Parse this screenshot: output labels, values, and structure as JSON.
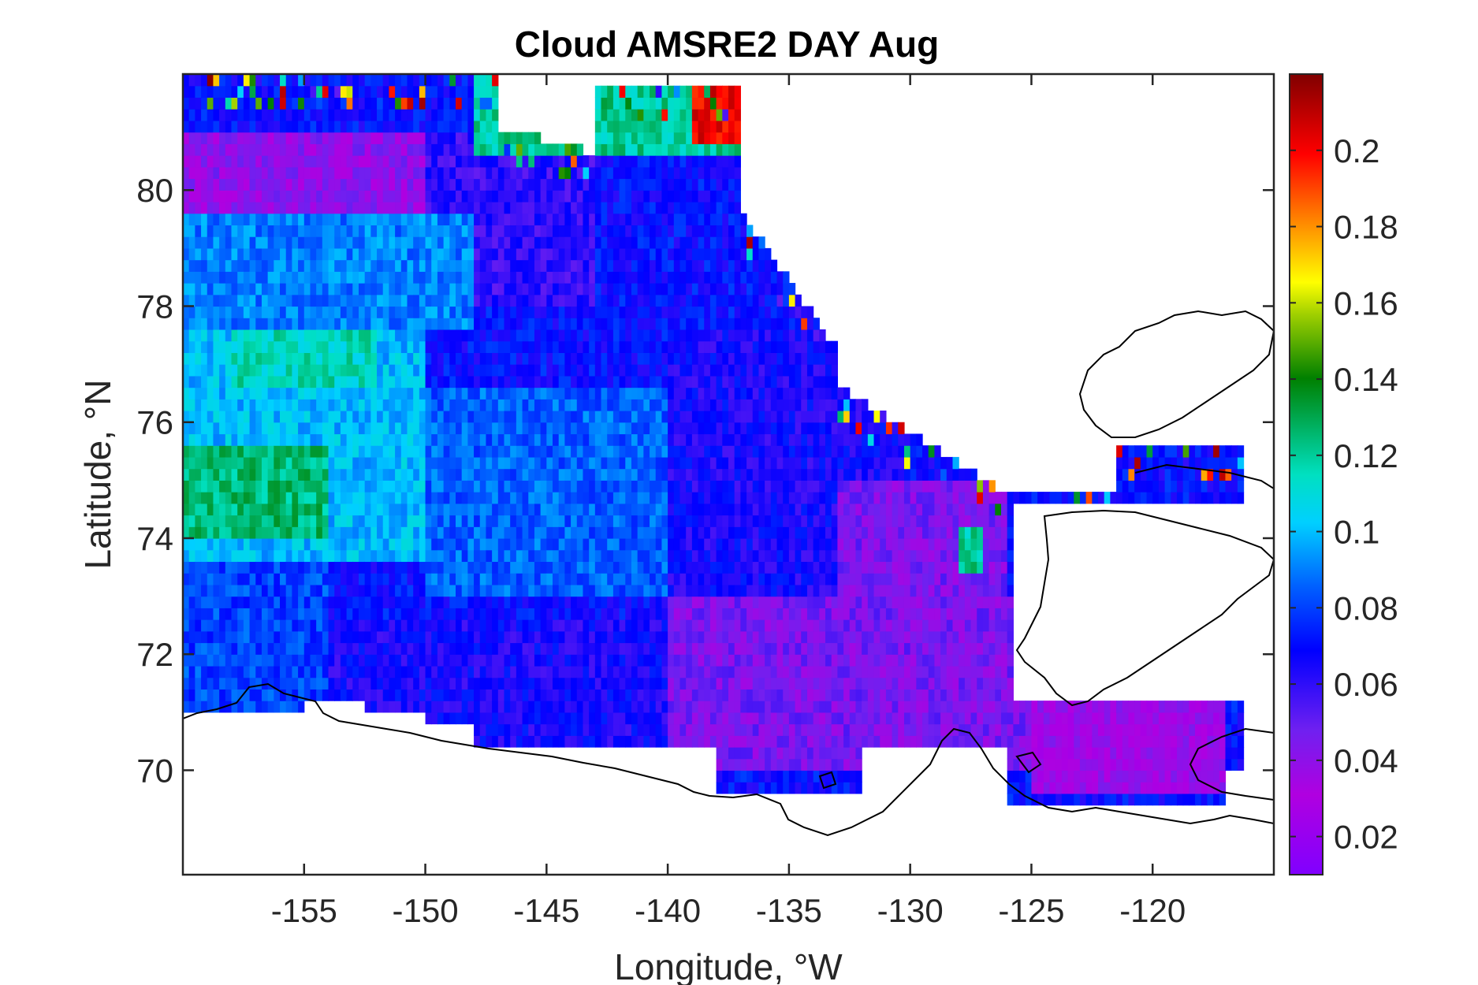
{
  "chart_data": {
    "type": "heatmap",
    "title": "Cloud AMSRE2 DAY Aug",
    "xlabel": "Longitude, °W",
    "ylabel": "Latitude, °N",
    "xlim": [
      -160,
      -115
    ],
    "ylim": [
      68.2,
      82
    ],
    "x_ticks": [
      -155,
      -150,
      -145,
      -140,
      -135,
      -130,
      -125,
      -120
    ],
    "x_tick_labels": [
      "-155",
      "-150",
      "-145",
      "-140",
      "-135",
      "-130",
      "-125",
      "-120"
    ],
    "y_ticks": [
      70,
      72,
      74,
      76,
      78,
      80
    ],
    "y_tick_labels": [
      "70",
      "72",
      "74",
      "76",
      "78",
      "80"
    ],
    "colorbar": {
      "range": [
        0.01,
        0.22
      ],
      "ticks": [
        0.02,
        0.04,
        0.06,
        0.08,
        0.1,
        0.12,
        0.14,
        0.16,
        0.18,
        0.2
      ],
      "tick_labels": [
        "0.02",
        "0.04",
        "0.06",
        "0.08",
        "0.1",
        "0.12",
        "0.14",
        "0.16",
        "0.18",
        "0.2"
      ],
      "colormap": [
        "#8000ff",
        "#c000d0",
        "#6020f0",
        "#0000ff",
        "#0080ff",
        "#00ffff",
        "#00c080",
        "#008000",
        "#80c000",
        "#ffff00",
        "#ff8000",
        "#ff0000",
        "#800000"
      ]
    },
    "cell_size_deg": {
      "lon": 0.25,
      "lat": 0.2
    },
    "regions": [
      {
        "lon": [
          -160,
          -154
        ],
        "lat": [
          71.0,
          73.5
        ],
        "value": 0.08
      },
      {
        "lon": [
          -154,
          -140
        ],
        "lat": [
          70.3,
          72.5
        ],
        "value": 0.065
      },
      {
        "lon": [
          -140,
          -125
        ],
        "lat": [
          70.0,
          73.0
        ],
        "value": 0.045
      },
      {
        "lon": [
          -125,
          -117
        ],
        "lat": [
          69.5,
          71.5
        ],
        "value": 0.035
      },
      {
        "lon": [
          -160,
          -150
        ],
        "lat": [
          73.5,
          77.5
        ],
        "value": 0.1
      },
      {
        "lon": [
          -160,
          -154
        ],
        "lat": [
          74.0,
          75.5
        ],
        "value": 0.125
      },
      {
        "lon": [
          -158,
          -152
        ],
        "lat": [
          76.5,
          77.8
        ],
        "value": 0.115
      },
      {
        "lon": [
          -150,
          -140
        ],
        "lat": [
          73.0,
          76.5
        ],
        "value": 0.085
      },
      {
        "lon": [
          -140,
          -130
        ],
        "lat": [
          73.0,
          77.5
        ],
        "value": 0.065
      },
      {
        "lon": [
          -133,
          -126
        ],
        "lat": [
          72.0,
          75.0
        ],
        "value": 0.045
      },
      {
        "lon": [
          -160,
          -150
        ],
        "lat": [
          79.5,
          81.0
        ],
        "value": 0.04
      },
      {
        "lon": [
          -150,
          -143
        ],
        "lat": [
          78.0,
          81.0
        ],
        "value": 0.06
      },
      {
        "lon": [
          -160,
          -148
        ],
        "lat": [
          77.5,
          79.5
        ],
        "value": 0.09
      },
      {
        "lon": [
          -148,
          -137
        ],
        "lat": [
          80.5,
          82.0
        ],
        "value": 0.12
      },
      {
        "lon": [
          -139,
          -137
        ],
        "lat": [
          80.8,
          81.8
        ],
        "value": 0.2
      },
      {
        "lon": [
          -128,
          -127
        ],
        "lat": [
          73.4,
          74.2
        ],
        "value": 0.12
      },
      {
        "lon": [
          -124,
          -115
        ],
        "lat": [
          74.6,
          75.5
        ],
        "value": 0.07
      }
    ]
  }
}
